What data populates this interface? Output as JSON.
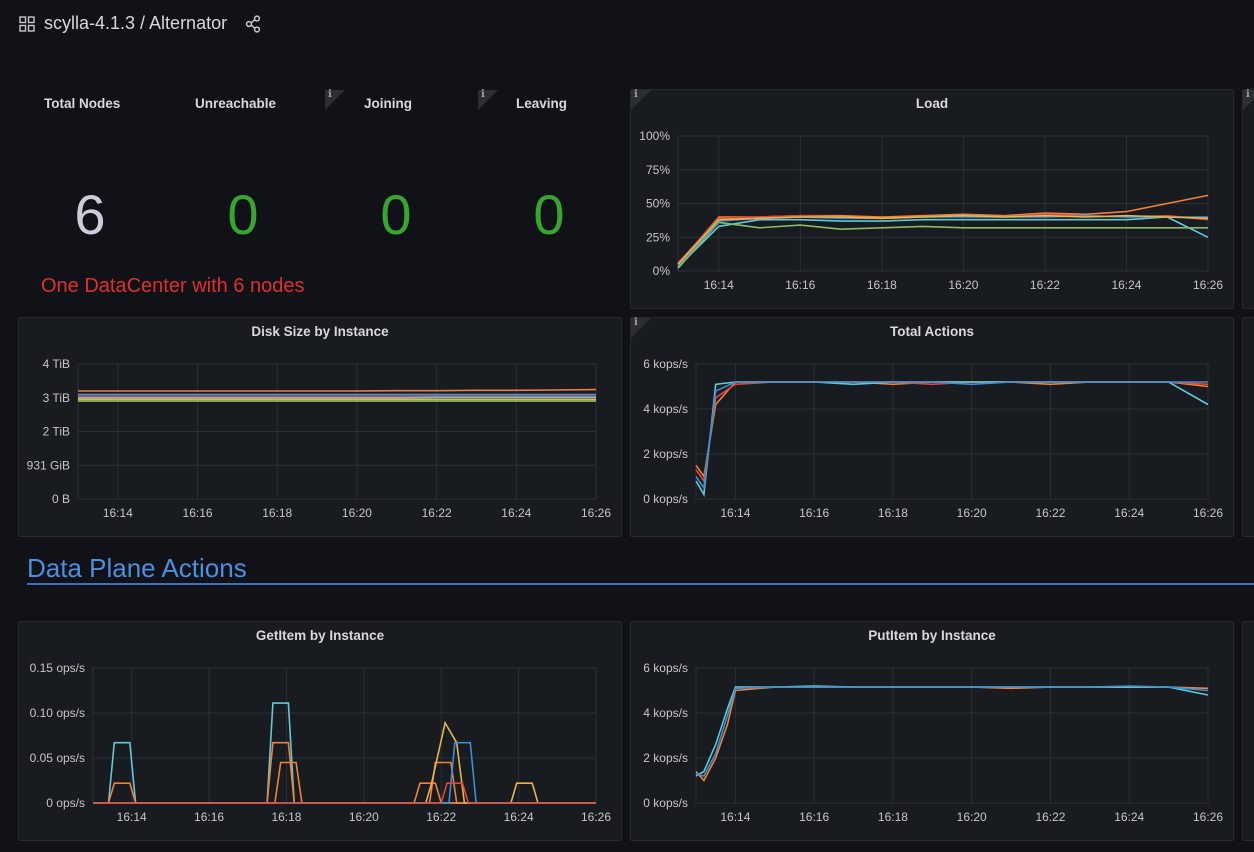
{
  "header": {
    "title": "scylla-4.1.3 / Alternator"
  },
  "stats": [
    {
      "title": "Total Nodes",
      "value": "6",
      "color": "#ccccdc"
    },
    {
      "title": "Unreachable",
      "value": "0",
      "color": "#37a62e"
    },
    {
      "title": "Joining",
      "value": "0",
      "color": "#37a62e"
    },
    {
      "title": "Leaving",
      "value": "0",
      "color": "#37a62e"
    }
  ],
  "info_icon_glyph": "i",
  "annotation": "One DataCenter with 6 nodes",
  "row_title": "Data Plane Actions",
  "series_colors": [
    "#f2803a",
    "#e0463b",
    "#5fcad8",
    "#8ab96a",
    "#3b8fd6",
    "#e8b54a"
  ],
  "charts": {
    "load": {
      "title": "Load",
      "chart_data": {
        "type": "line",
        "x": [
          "16:13",
          "16:14",
          "16:15",
          "16:16",
          "16:17",
          "16:18",
          "16:19",
          "16:20",
          "16:21",
          "16:22",
          "16:23",
          "16:24",
          "16:25",
          "16:26"
        ],
        "xticks": [
          "16:14",
          "16:16",
          "16:18",
          "16:20",
          "16:22",
          "16:24",
          "16:26"
        ],
        "yticks": [
          "0%",
          "25%",
          "50%",
          "75%",
          "100%"
        ],
        "ylim": [
          0,
          100
        ],
        "series": [
          {
            "values": [
              5,
              40,
              40,
              41,
              41,
              40,
              41,
              42,
              41,
              43,
              42,
              44,
              50,
              56
            ]
          },
          {
            "values": [
              6,
              39,
              40,
              41,
              40,
              39,
              40,
              41,
              40,
              42,
              41,
              40,
              41,
              38
            ]
          },
          {
            "values": [
              3,
              33,
              38,
              38,
              37,
              37,
              38,
              38,
              38,
              38,
              38,
              38,
              40,
              25
            ]
          },
          {
            "values": [
              2,
              36,
              32,
              34,
              31,
              32,
              33,
              32,
              32,
              32,
              32,
              32,
              32,
              32
            ]
          },
          {
            "values": [
              4,
              37,
              39,
              40,
              39,
              39,
              40,
              40,
              40,
              40,
              41,
              40,
              40,
              40
            ]
          },
          {
            "values": [
              5,
              38,
              39,
              40,
              40,
              39,
              40,
              41,
              40,
              41,
              40,
              41,
              40,
              39
            ]
          }
        ]
      }
    },
    "disk": {
      "title": "Disk Size by Instance",
      "chart_data": {
        "type": "line",
        "x": [
          "16:13",
          "16:14",
          "16:15",
          "16:16",
          "16:17",
          "16:18",
          "16:19",
          "16:20",
          "16:21",
          "16:22",
          "16:23",
          "16:24",
          "16:25",
          "16:26"
        ],
        "xticks": [
          "16:14",
          "16:16",
          "16:18",
          "16:20",
          "16:22",
          "16:24",
          "16:26"
        ],
        "yticks": [
          "0 B",
          "931 GiB",
          "2 TiB",
          "3 TiB",
          "4 TiB"
        ],
        "ylim": [
          0,
          4
        ],
        "series": [
          {
            "values": [
              3.2,
              3.2,
              3.2,
              3.2,
              3.2,
              3.2,
              3.2,
              3.2,
              3.21,
              3.21,
              3.22,
              3.22,
              3.23,
              3.24
            ]
          },
          {
            "values": [
              3.05,
              3.05,
              3.05,
              3.05,
              3.05,
              3.05,
              3.05,
              3.05,
              3.05,
              3.05,
              3.05,
              3.05,
              3.05,
              3.05
            ]
          },
          {
            "values": [
              3.0,
              3.0,
              3.0,
              3.0,
              3.0,
              3.0,
              3.0,
              3.0,
              3.0,
              3.01,
              3.01,
              3.01,
              3.01,
              3.01
            ]
          },
          {
            "values": [
              2.9,
              2.9,
              2.9,
              2.9,
              2.9,
              2.9,
              2.9,
              2.9,
              2.9,
              2.9,
              2.9,
              2.9,
              2.9,
              2.9
            ]
          },
          {
            "values": [
              3.1,
              3.1,
              3.1,
              3.1,
              3.1,
              3.1,
              3.1,
              3.1,
              3.1,
              3.1,
              3.1,
              3.1,
              3.1,
              3.1
            ]
          },
          {
            "values": [
              2.95,
              2.95,
              2.95,
              2.95,
              2.95,
              2.95,
              2.95,
              2.95,
              2.95,
              2.95,
              2.95,
              2.95,
              2.95,
              2.95
            ]
          }
        ]
      }
    },
    "actions": {
      "title": "Total Actions",
      "chart_data": {
        "type": "line",
        "x": [
          "16:13",
          "16:13.2",
          "16:13.5",
          "16:14",
          "16:15",
          "16:16",
          "16:17",
          "16:18",
          "16:19",
          "16:20",
          "16:21",
          "16:22",
          "16:23",
          "16:24",
          "16:25",
          "16:26"
        ],
        "xticks": [
          "16:14",
          "16:16",
          "16:18",
          "16:20",
          "16:22",
          "16:24",
          "16:26"
        ],
        "yticks": [
          "0 kops/s",
          "2 kops/s",
          "4 kops/s",
          "6 kops/s"
        ],
        "ylim": [
          0,
          6
        ],
        "series": [
          {
            "values": [
              1.5,
              1.0,
              4.2,
              5.2,
              5.2,
              5.2,
              5.2,
              5.1,
              5.2,
              5.2,
              5.2,
              5.1,
              5.2,
              5.2,
              5.2,
              5.0
            ]
          },
          {
            "values": [
              1.3,
              0.8,
              4.5,
              5.1,
              5.2,
              5.2,
              5.2,
              5.2,
              5.1,
              5.2,
              5.2,
              5.2,
              5.2,
              5.2,
              5.2,
              5.1
            ]
          },
          {
            "values": [
              0.8,
              0.2,
              5.1,
              5.2,
              5.2,
              5.2,
              5.1,
              5.2,
              5.2,
              5.2,
              5.2,
              5.2,
              5.2,
              5.2,
              5.2,
              4.2
            ]
          },
          {
            "values": [
              1.0,
              0.5,
              4.8,
              5.2,
              5.2,
              5.2,
              5.2,
              5.2,
              5.2,
              5.1,
              5.2,
              5.2,
              5.2,
              5.2,
              5.2,
              5.2
            ]
          }
        ]
      }
    },
    "getitem": {
      "title": "GetItem by Instance",
      "chart_data": {
        "type": "line",
        "x_range": [
          16.13,
          16.26
        ],
        "xticks": [
          "16:14",
          "16:16",
          "16:18",
          "16:20",
          "16:22",
          "16:24",
          "16:26"
        ],
        "yticks": [
          "0 ops/s",
          "0.05 ops/s",
          "0.10 ops/s",
          "0.15 ops/s"
        ],
        "ylim": [
          0,
          0.15
        ],
        "series": [
          {
            "points": [
              [
                13.0,
                0
              ],
              [
                13.4,
                0
              ],
              [
                13.55,
                0.067
              ],
              [
                13.95,
                0.067
              ],
              [
                14.1,
                0
              ],
              [
                17.5,
                0
              ],
              [
                17.65,
                0.111
              ],
              [
                18.05,
                0.111
              ],
              [
                18.2,
                0
              ],
              [
                26,
                0
              ]
            ]
          },
          {
            "points": [
              [
                13.0,
                0
              ],
              [
                13.4,
                0
              ],
              [
                13.55,
                0.022
              ],
              [
                13.95,
                0.022
              ],
              [
                14.1,
                0
              ],
              [
                17.5,
                0
              ],
              [
                17.65,
                0.067
              ],
              [
                18.05,
                0.067
              ],
              [
                18.2,
                0
              ],
              [
                21.3,
                0
              ],
              [
                21.45,
                0.022
              ],
              [
                21.85,
                0.022
              ],
              [
                22.0,
                0
              ],
              [
                26,
                0
              ]
            ]
          },
          {
            "points": [
              [
                13.0,
                0
              ],
              [
                17.7,
                0
              ],
              [
                17.85,
                0.045
              ],
              [
                18.25,
                0.045
              ],
              [
                18.4,
                0
              ],
              [
                21.7,
                0
              ],
              [
                21.85,
                0.045
              ],
              [
                22.25,
                0.045
              ],
              [
                22.4,
                0
              ],
              [
                26,
                0
              ]
            ]
          },
          {
            "points": [
              [
                13.0,
                0
              ],
              [
                21.6,
                0
              ],
              [
                21.75,
                0.022
              ],
              [
                22.1,
                0.089
              ],
              [
                22.4,
                0.067
              ],
              [
                22.6,
                0
              ],
              [
                23.8,
                0
              ],
              [
                23.95,
                0.022
              ],
              [
                24.35,
                0.022
              ],
              [
                24.5,
                0
              ],
              [
                26,
                0
              ]
            ]
          },
          {
            "points": [
              [
                13.0,
                0
              ],
              [
                22.2,
                0
              ],
              [
                22.35,
                0.067
              ],
              [
                22.75,
                0.067
              ],
              [
                22.9,
                0
              ],
              [
                26,
                0
              ]
            ]
          },
          {
            "points": [
              [
                13.0,
                0
              ],
              [
                22.0,
                0
              ],
              [
                22.15,
                0.022
              ],
              [
                22.55,
                0.022
              ],
              [
                22.7,
                0
              ],
              [
                26,
                0
              ]
            ]
          }
        ]
      }
    },
    "putitem": {
      "title": "PutItem by Instance",
      "chart_data": {
        "type": "line",
        "x": [
          "16:13",
          "16:13.2",
          "16:13.5",
          "16:13.8",
          "16:14",
          "16:15",
          "16:16",
          "16:17",
          "16:18",
          "16:19",
          "16:20",
          "16:21",
          "16:22",
          "16:23",
          "16:24",
          "16:25",
          "16:26"
        ],
        "xticks": [
          "16:14",
          "16:16",
          "16:18",
          "16:20",
          "16:22",
          "16:24",
          "16:26"
        ],
        "yticks": [
          "0 kops/s",
          "2 kops/s",
          "4 kops/s",
          "6 kops/s"
        ],
        "ylim": [
          0,
          6
        ],
        "series": [
          {
            "values": [
              1.4,
              1.0,
              2.0,
              3.5,
              5.0,
              5.15,
              5.15,
              5.15,
              5.15,
              5.15,
              5.15,
              5.1,
              5.15,
              5.15,
              5.15,
              5.15,
              5.1
            ]
          },
          {
            "values": [
              1.2,
              1.4,
              2.6,
              4.2,
              5.15,
              5.15,
              5.2,
              5.15,
              5.15,
              5.15,
              5.15,
              5.15,
              5.15,
              5.15,
              5.15,
              5.15,
              4.8
            ]
          },
          {
            "values": [
              1.3,
              1.2,
              2.2,
              3.9,
              5.1,
              5.15,
              5.15,
              5.15,
              5.15,
              5.15,
              5.15,
              5.15,
              5.15,
              5.15,
              5.2,
              5.15,
              5.0
            ]
          }
        ]
      }
    }
  }
}
